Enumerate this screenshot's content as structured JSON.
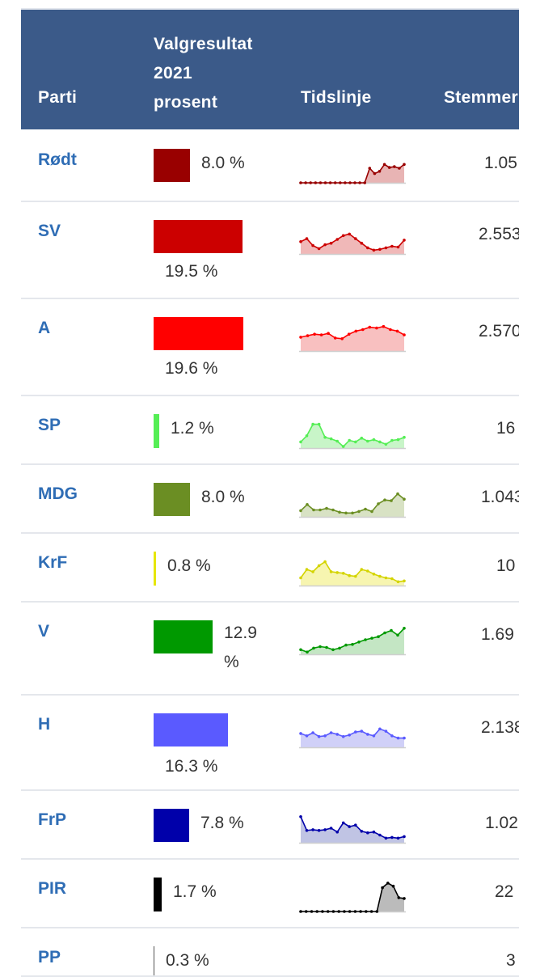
{
  "header": {
    "col_party": "Parti",
    "col_result_line1": "Valgresultat",
    "col_result_line2": "2021",
    "col_result_line3": "prosent",
    "col_timeline": "Tidslinje",
    "col_votes": "Stemmer"
  },
  "rows": [
    {
      "party": "Rødt",
      "pct_label": "8.0 %",
      "pct": 8.0,
      "color": "#990000",
      "votes": "1.05",
      "spark": [
        0,
        0,
        0,
        0,
        0,
        0,
        0,
        0,
        0,
        0,
        0,
        0,
        0,
        0,
        0.95,
        0.6,
        0.75,
        1.2,
        1.0,
        1.05,
        0.95,
        1.2
      ],
      "spark_fill": "#e8b4b4"
    },
    {
      "party": "SV",
      "pct_label": "19.5 %",
      "pct": 19.5,
      "color": "#cc0000",
      "votes": "2.553",
      "spark": [
        0.8,
        1.0,
        0.55,
        0.35,
        0.6,
        0.7,
        0.95,
        1.2,
        1.3,
        1.0,
        0.7,
        0.4,
        0.25,
        0.3,
        0.4,
        0.5,
        0.45,
        0.9
      ],
      "spark_fill": "#f0b8b8"
    },
    {
      "party": "A",
      "pct_label": "19.6 %",
      "pct": 19.6,
      "color": "#ff0000",
      "votes": "2.570",
      "spark": [
        0.9,
        1.0,
        1.1,
        1.05,
        1.15,
        0.85,
        0.8,
        1.1,
        1.3,
        1.4,
        1.55,
        1.5,
        1.6,
        1.4,
        1.3,
        1.05
      ],
      "spark_fill": "#f8c0c0"
    },
    {
      "party": "SP",
      "pct_label": "1.2 %",
      "pct": 1.2,
      "color": "#55ee55",
      "votes": "16",
      "spark": [
        0.4,
        0.8,
        1.55,
        1.55,
        0.7,
        0.6,
        0.45,
        0.1,
        0.5,
        0.4,
        0.65,
        0.45,
        0.55,
        0.4,
        0.25,
        0.5,
        0.55,
        0.7
      ],
      "spark_fill": "#c8f5c8"
    },
    {
      "party": "MDG",
      "pct_label": "8.0 %",
      "pct": 8.0,
      "color": "#6b8e23",
      "votes": "1.043",
      "spark": [
        0.4,
        0.8,
        0.45,
        0.45,
        0.55,
        0.45,
        0.3,
        0.25,
        0.25,
        0.35,
        0.5,
        0.35,
        0.85,
        1.1,
        1.05,
        1.5,
        1.15
      ],
      "spark_fill": "#d8e2c4"
    },
    {
      "party": "KrF",
      "pct_label": "0.8 %",
      "pct": 0.8,
      "color": "#e6e600",
      "votes": "10",
      "spark": [
        0.5,
        1.05,
        0.9,
        1.3,
        1.55,
        0.9,
        0.85,
        0.8,
        0.65,
        0.6,
        1.05,
        0.95,
        0.75,
        0.6,
        0.5,
        0.45,
        0.25,
        0.3
      ],
      "spark_fill": "#f7f5b0"
    },
    {
      "party": "V",
      "pct_label": "12.9 %",
      "pct": 12.9,
      "color": "#009900",
      "votes": "1.69",
      "spark": [
        0.3,
        0.15,
        0.4,
        0.5,
        0.45,
        0.3,
        0.4,
        0.6,
        0.65,
        0.8,
        0.95,
        1.05,
        1.15,
        1.4,
        1.55,
        1.25,
        1.7
      ],
      "spark_fill": "#c4e6c4"
    },
    {
      "party": "H",
      "pct_label": "16.3 %",
      "pct": 16.3,
      "color": "#5a5aff",
      "votes": "2.138",
      "spark": [
        0.9,
        0.75,
        0.95,
        0.7,
        0.75,
        0.95,
        0.85,
        0.7,
        0.8,
        1.0,
        1.05,
        0.85,
        0.75,
        1.2,
        1.05,
        0.75,
        0.6,
        0.6
      ],
      "spark_fill": "#d0d0f8"
    },
    {
      "party": "FrP",
      "pct_label": "7.8 %",
      "pct": 7.8,
      "color": "#0000aa",
      "votes": "1.02",
      "spark": [
        1.7,
        0.8,
        0.85,
        0.8,
        0.85,
        0.95,
        0.7,
        1.3,
        1.05,
        1.15,
        0.75,
        0.65,
        0.7,
        0.5,
        0.3,
        0.35,
        0.3,
        0.4
      ],
      "spark_fill": "#c0c4e4"
    },
    {
      "party": "PIR",
      "pct_label": "1.7 %",
      "pct": 1.7,
      "color": "#000000",
      "votes": "22",
      "spark": [
        0,
        0,
        0,
        0,
        0,
        0,
        0,
        0,
        0,
        0,
        0,
        0,
        0,
        0,
        0,
        1.55,
        1.85,
        1.65,
        0.9,
        0.85
      ],
      "spark_fill": "#bbbbbb"
    },
    {
      "party": "PP",
      "pct_label": "0.3 %",
      "pct": 0.3,
      "color": "#555555",
      "votes": "3",
      "spark": [],
      "spark_fill": "#dddddd"
    }
  ]
}
